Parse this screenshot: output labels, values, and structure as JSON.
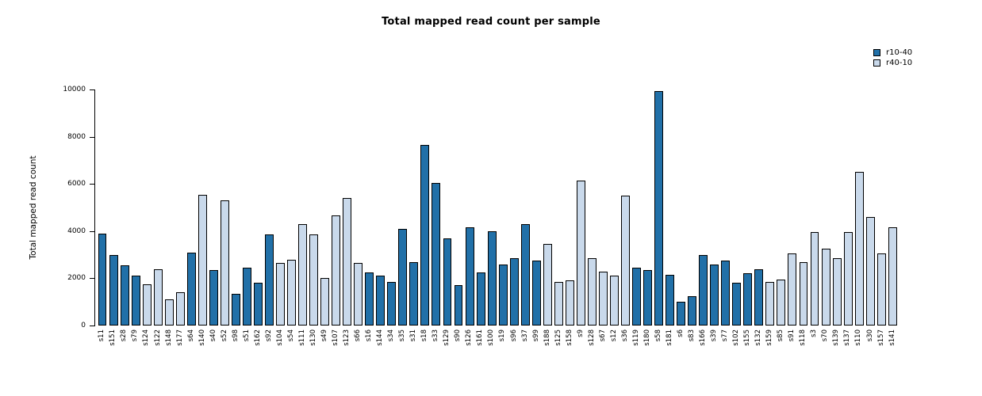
{
  "chart_data": {
    "type": "bar",
    "title": "Total mapped read count per sample",
    "ylabel": "Total mapped read count",
    "xlabel": "",
    "ylim": [
      0,
      10000
    ],
    "yticks": [
      0,
      2000,
      4000,
      6000,
      8000,
      10000
    ],
    "grid": false,
    "legend_position": "top-right",
    "series_names": [
      "r10-40",
      "r40-10"
    ],
    "colors": {
      "r10-40": "#2170a8",
      "r40-10": "#c9d9eb"
    },
    "samples": [
      {
        "label": "s11",
        "value": 3900,
        "group": "r10-40"
      },
      {
        "label": "s151",
        "value": 3000,
        "group": "r10-40"
      },
      {
        "label": "s28",
        "value": 2550,
        "group": "r10-40"
      },
      {
        "label": "s79",
        "value": 2100,
        "group": "r10-40"
      },
      {
        "label": "s124",
        "value": 1750,
        "group": "r40-10"
      },
      {
        "label": "s122",
        "value": 2400,
        "group": "r40-10"
      },
      {
        "label": "s148",
        "value": 1100,
        "group": "r40-10"
      },
      {
        "label": "s177",
        "value": 1400,
        "group": "r40-10"
      },
      {
        "label": "s64",
        "value": 3100,
        "group": "r10-40"
      },
      {
        "label": "s140",
        "value": 5550,
        "group": "r40-10"
      },
      {
        "label": "s40",
        "value": 2350,
        "group": "r10-40"
      },
      {
        "label": "s52",
        "value": 5300,
        "group": "r40-10"
      },
      {
        "label": "s98",
        "value": 1350,
        "group": "r10-40"
      },
      {
        "label": "s51",
        "value": 2450,
        "group": "r10-40"
      },
      {
        "label": "s162",
        "value": 1800,
        "group": "r10-40"
      },
      {
        "label": "s92",
        "value": 3850,
        "group": "r10-40"
      },
      {
        "label": "s104",
        "value": 2650,
        "group": "r40-10"
      },
      {
        "label": "s54",
        "value": 2800,
        "group": "r40-10"
      },
      {
        "label": "s111",
        "value": 4300,
        "group": "r40-10"
      },
      {
        "label": "s130",
        "value": 3850,
        "group": "r40-10"
      },
      {
        "label": "s49",
        "value": 2000,
        "group": "r40-10"
      },
      {
        "label": "s107",
        "value": 4650,
        "group": "r40-10"
      },
      {
        "label": "s123",
        "value": 5400,
        "group": "r40-10"
      },
      {
        "label": "s66",
        "value": 2650,
        "group": "r40-10"
      },
      {
        "label": "s16",
        "value": 2250,
        "group": "r10-40"
      },
      {
        "label": "s144",
        "value": 2100,
        "group": "r10-40"
      },
      {
        "label": "s34",
        "value": 1850,
        "group": "r10-40"
      },
      {
        "label": "s35",
        "value": 4100,
        "group": "r10-40"
      },
      {
        "label": "s31",
        "value": 2700,
        "group": "r10-40"
      },
      {
        "label": "s18",
        "value": 7650,
        "group": "r10-40"
      },
      {
        "label": "s33",
        "value": 6050,
        "group": "r10-40"
      },
      {
        "label": "s129",
        "value": 3700,
        "group": "r10-40"
      },
      {
        "label": "s90",
        "value": 1700,
        "group": "r10-40"
      },
      {
        "label": "s126",
        "value": 4150,
        "group": "r10-40"
      },
      {
        "label": "s161",
        "value": 2250,
        "group": "r10-40"
      },
      {
        "label": "s100",
        "value": 4000,
        "group": "r10-40"
      },
      {
        "label": "s19",
        "value": 2600,
        "group": "r10-40"
      },
      {
        "label": "s96",
        "value": 2850,
        "group": "r10-40"
      },
      {
        "label": "s37",
        "value": 4300,
        "group": "r10-40"
      },
      {
        "label": "s99",
        "value": 2750,
        "group": "r10-40"
      },
      {
        "label": "s188",
        "value": 3450,
        "group": "r40-10"
      },
      {
        "label": "s125",
        "value": 1850,
        "group": "r40-10"
      },
      {
        "label": "s158",
        "value": 1900,
        "group": "r40-10"
      },
      {
        "label": "s9",
        "value": 6150,
        "group": "r40-10"
      },
      {
        "label": "s128",
        "value": 2850,
        "group": "r40-10"
      },
      {
        "label": "s67",
        "value": 2300,
        "group": "r40-10"
      },
      {
        "label": "s12",
        "value": 2100,
        "group": "r40-10"
      },
      {
        "label": "s36",
        "value": 5500,
        "group": "r40-10"
      },
      {
        "label": "s119",
        "value": 2450,
        "group": "r10-40"
      },
      {
        "label": "s180",
        "value": 2350,
        "group": "r10-40"
      },
      {
        "label": "s58",
        "value": 9950,
        "group": "r10-40"
      },
      {
        "label": "s181",
        "value": 2150,
        "group": "r10-40"
      },
      {
        "label": "s6",
        "value": 1000,
        "group": "r10-40"
      },
      {
        "label": "s83",
        "value": 1250,
        "group": "r10-40"
      },
      {
        "label": "s166",
        "value": 3000,
        "group": "r10-40"
      },
      {
        "label": "s39",
        "value": 2600,
        "group": "r10-40"
      },
      {
        "label": "s77",
        "value": 2750,
        "group": "r10-40"
      },
      {
        "label": "s102",
        "value": 1800,
        "group": "r10-40"
      },
      {
        "label": "s155",
        "value": 2200,
        "group": "r10-40"
      },
      {
        "label": "s132",
        "value": 2400,
        "group": "r10-40"
      },
      {
        "label": "s159",
        "value": 1850,
        "group": "r40-10"
      },
      {
        "label": "s85",
        "value": 1950,
        "group": "r40-10"
      },
      {
        "label": "s91",
        "value": 3050,
        "group": "r40-10"
      },
      {
        "label": "s118",
        "value": 2700,
        "group": "r40-10"
      },
      {
        "label": "s3",
        "value": 3950,
        "group": "r40-10"
      },
      {
        "label": "s70",
        "value": 3250,
        "group": "r40-10"
      },
      {
        "label": "s139",
        "value": 2850,
        "group": "r40-10"
      },
      {
        "label": "s137",
        "value": 3950,
        "group": "r40-10"
      },
      {
        "label": "s110",
        "value": 6500,
        "group": "r40-10"
      },
      {
        "label": "s30",
        "value": 4600,
        "group": "r40-10"
      },
      {
        "label": "s157",
        "value": 3050,
        "group": "r40-10"
      },
      {
        "label": "s141",
        "value": 4150,
        "group": "r40-10"
      }
    ]
  }
}
